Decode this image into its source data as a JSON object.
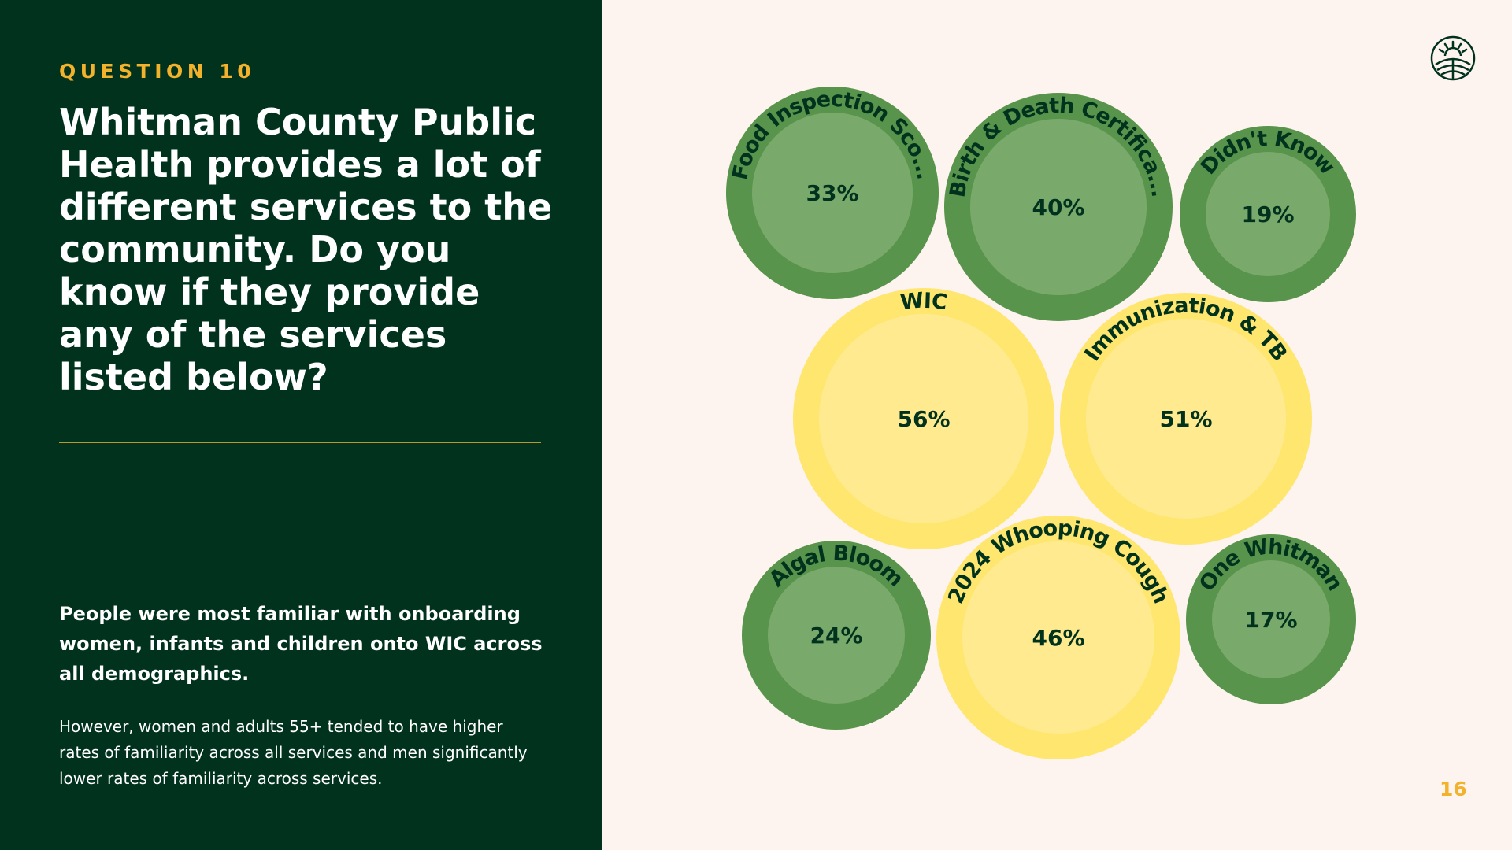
{
  "slide": {
    "eyebrow": "QUESTION 10",
    "question": "Whitman County Public Health provides a lot of different services to the community. Do you know if they provide any of the services listed below?",
    "finding": "People were most familiar with onboarding women, infants and children onto WIC across all demographics.",
    "detail": "However, women and adults 55+ tended to have higher rates of familiarity across all services and men significantly lower rates of familiarity across services.",
    "page_number": "16"
  },
  "colors": {
    "panel_bg": "#01321E",
    "page_bg": "#FDF3EF",
    "accent": "#F2B22B",
    "green_outer": "#58944B",
    "green_inner": "#7AA96C",
    "yellow_outer": "#FFE66E",
    "yellow_inner": "#FFEA90",
    "label_text": "#01321E"
  },
  "chart_data": {
    "type": "bubble",
    "points": [
      {
        "label": "Food Inspection Sco...",
        "value": 33,
        "display": "33%",
        "group": "green"
      },
      {
        "label": "Birth & Death Certifica...",
        "value": 40,
        "display": "40%",
        "group": "green"
      },
      {
        "label": "Didn't Know",
        "value": 19,
        "display": "19%",
        "group": "green"
      },
      {
        "label": "WIC",
        "value": 56,
        "display": "56%",
        "group": "yellow"
      },
      {
        "label": "Immunization & TB",
        "value": 51,
        "display": "51%",
        "group": "yellow"
      },
      {
        "label": "Algal Bloom",
        "value": 24,
        "display": "24%",
        "group": "green"
      },
      {
        "label": "2024 Whooping Cough",
        "value": 46,
        "display": "46%",
        "group": "yellow"
      },
      {
        "label": "One Whitman",
        "value": 17,
        "display": "17%",
        "group": "green"
      }
    ]
  }
}
